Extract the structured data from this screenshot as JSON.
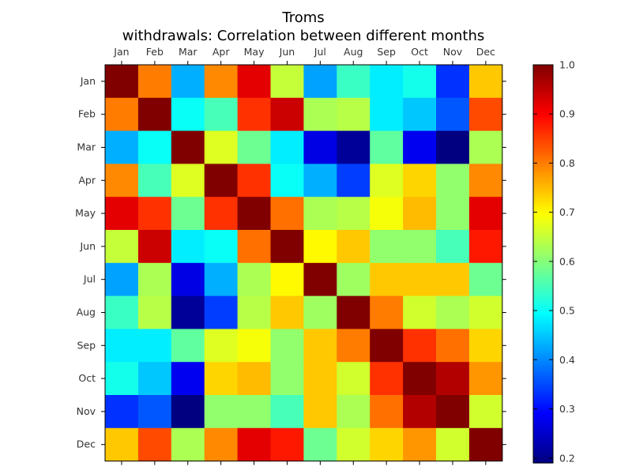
{
  "chart_data": {
    "type": "heatmap",
    "title_line1": "Troms",
    "title_line2": "withdrawals: Correlation between different months",
    "x_categories": [
      "Jan",
      "Feb",
      "Mar",
      "Apr",
      "May",
      "Jun",
      "Jul",
      "Aug",
      "Sep",
      "Oct",
      "Nov",
      "Dec"
    ],
    "y_categories": [
      "Jan",
      "Feb",
      "Mar",
      "Apr",
      "May",
      "Jun",
      "Jul",
      "Aug",
      "Sep",
      "Oct",
      "Nov",
      "Dec"
    ],
    "x_tick_position": "top",
    "colormap": "jet",
    "colorbar": {
      "min": 0.19,
      "max": 1.0,
      "ticks": [
        "1.0",
        "0.9",
        "0.8",
        "0.7",
        "0.6",
        "0.5",
        "0.4",
        "0.3",
        "0.2"
      ],
      "tick_values": [
        1.0,
        0.9,
        0.8,
        0.7,
        0.6,
        0.5,
        0.4,
        0.3,
        0.2
      ]
    },
    "grid": false,
    "values": [
      [
        1.0,
        0.8,
        0.43,
        0.79,
        0.92,
        0.65,
        0.42,
        0.54,
        0.48,
        0.51,
        0.33,
        0.74
      ],
      [
        0.8,
        1.0,
        0.5,
        0.55,
        0.86,
        0.94,
        0.63,
        0.64,
        0.48,
        0.45,
        0.36,
        0.84
      ],
      [
        0.43,
        0.5,
        1.0,
        0.67,
        0.58,
        0.48,
        0.27,
        0.21,
        0.57,
        0.28,
        0.19,
        0.63
      ],
      [
        0.79,
        0.55,
        0.67,
        1.0,
        0.86,
        0.5,
        0.43,
        0.34,
        0.67,
        0.73,
        0.61,
        0.79
      ],
      [
        0.92,
        0.86,
        0.58,
        0.86,
        1.0,
        0.81,
        0.63,
        0.64,
        0.69,
        0.75,
        0.61,
        0.92
      ],
      [
        0.65,
        0.94,
        0.48,
        0.5,
        0.81,
        1.0,
        0.7,
        0.74,
        0.61,
        0.61,
        0.55,
        0.88
      ],
      [
        0.42,
        0.63,
        0.27,
        0.43,
        0.63,
        0.7,
        1.0,
        0.62,
        0.74,
        0.74,
        0.74,
        0.58
      ],
      [
        0.54,
        0.64,
        0.21,
        0.34,
        0.64,
        0.74,
        0.62,
        1.0,
        0.8,
        0.66,
        0.63,
        0.66
      ],
      [
        0.48,
        0.48,
        0.57,
        0.67,
        0.69,
        0.61,
        0.74,
        0.8,
        1.0,
        0.86,
        0.81,
        0.73
      ],
      [
        0.51,
        0.45,
        0.28,
        0.73,
        0.75,
        0.61,
        0.74,
        0.66,
        0.86,
        1.0,
        0.96,
        0.78
      ],
      [
        0.33,
        0.36,
        0.19,
        0.61,
        0.61,
        0.55,
        0.74,
        0.63,
        0.81,
        0.96,
        1.0,
        0.66
      ],
      [
        0.74,
        0.84,
        0.63,
        0.79,
        0.92,
        0.88,
        0.58,
        0.66,
        0.73,
        0.78,
        0.66,
        1.0
      ]
    ]
  }
}
